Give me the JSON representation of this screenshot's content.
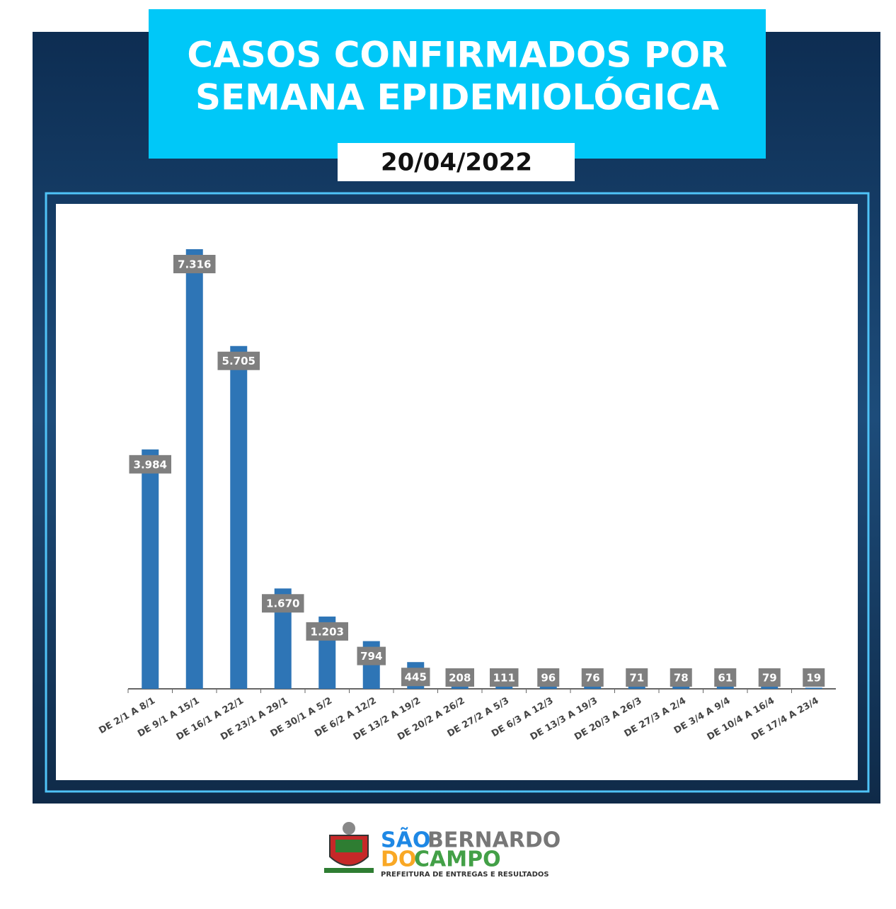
{
  "chart_data": {
    "type": "bar",
    "title": "CASOS CONFIRMADOS POR\nSEMANA EPIDEMIOLÓGICA",
    "subtitle": "20/04/2022",
    "categories": [
      "DE 2/1 A 8/1",
      "DE 9/1 A 15/1",
      "DE 16/1 A 22/1",
      "DE 23/1 A 29/1",
      "DE 30/1 A 5/2",
      "DE 6/2 A 12/2",
      "DE 13/2 A 19/2",
      "DE 20/2 A 26/2",
      "DE 27/2 A 5/3",
      "DE 6/3 A 12/3",
      "DE 13/3 A 19/3",
      "DE 20/3 A 26/3",
      "DE 27/3 A 2/4",
      "DE 3/4 A 9/4",
      "DE 10/4 A 16/4",
      "DE 17/4 A 23/4"
    ],
    "values": [
      3984,
      7316,
      5705,
      1670,
      1203,
      794,
      445,
      208,
      111,
      96,
      76,
      71,
      78,
      61,
      79,
      19
    ],
    "value_labels": [
      "3.984",
      "7.316",
      "5.705",
      "1.670",
      "1.203",
      "794",
      "445",
      "208",
      "111",
      "96",
      "76",
      "71",
      "78",
      "61",
      "79",
      "19"
    ],
    "color": "#2e75b6"
  },
  "footer": {
    "name_1": "SÃO",
    "name_2": "BERNARDO",
    "name_3": "DO",
    "name_4": "CAMPO",
    "slogan": "PREFEITURA DE ENTREGAS E RESULTADOS"
  }
}
